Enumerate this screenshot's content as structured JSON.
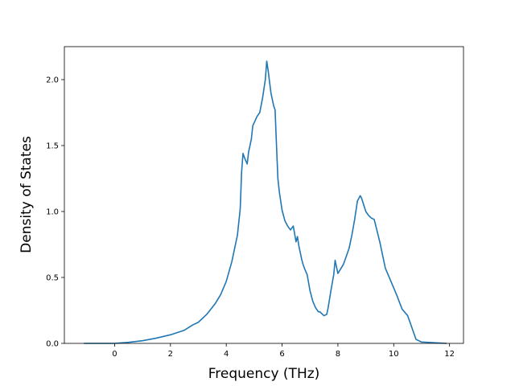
{
  "chart_data": {
    "type": "line",
    "title": "",
    "xlabel": "Frequency (THz)",
    "ylabel": "Density of States",
    "xlim": [
      -1.8,
      12.5
    ],
    "ylim": [
      0.0,
      2.25
    ],
    "xticks": [
      0,
      2,
      4,
      6,
      8,
      10,
      12
    ],
    "yticks": [
      0.0,
      0.5,
      1.0,
      1.5,
      2.0
    ],
    "xtick_labels": [
      "0",
      "2",
      "4",
      "6",
      "8",
      "10",
      "12"
    ],
    "ytick_labels": [
      "0.0",
      "0.5",
      "1.0",
      "1.5",
      "2.0"
    ],
    "grid": false,
    "line_color": "#1f77b4",
    "series": [
      {
        "x": [
          -1.1,
          0.0,
          0.5,
          1.0,
          1.5,
          2.0,
          2.5,
          2.8,
          3.0,
          3.3,
          3.6,
          3.8,
          4.0,
          4.2,
          4.4,
          4.5,
          4.55,
          4.6,
          4.65,
          4.75,
          4.8,
          4.9,
          4.95,
          5.1,
          5.2,
          5.3,
          5.4,
          5.45,
          5.5,
          5.6,
          5.7,
          5.75,
          5.8,
          5.85,
          5.9,
          6.0,
          6.1,
          6.2,
          6.3,
          6.4,
          6.5,
          6.55,
          6.6,
          6.65,
          6.7,
          6.75,
          6.8,
          6.9,
          7.0,
          7.1,
          7.2,
          7.3,
          7.35,
          7.5,
          7.6,
          7.65,
          7.75,
          7.85,
          7.9,
          8.0,
          8.2,
          8.4,
          8.5,
          8.6,
          8.7,
          8.8,
          8.85,
          9.0,
          9.1,
          9.2,
          9.3,
          9.5,
          9.7,
          9.8,
          10.0,
          10.1,
          10.3,
          10.5,
          10.8,
          11.0,
          11.9
        ],
        "values": [
          0.0,
          0.0,
          0.008,
          0.02,
          0.04,
          0.065,
          0.1,
          0.14,
          0.16,
          0.22,
          0.3,
          0.37,
          0.47,
          0.62,
          0.82,
          1.02,
          1.3,
          1.44,
          1.41,
          1.36,
          1.45,
          1.55,
          1.65,
          1.72,
          1.75,
          1.86,
          2.0,
          2.14,
          2.07,
          1.9,
          1.8,
          1.77,
          1.5,
          1.25,
          1.15,
          1.01,
          0.93,
          0.89,
          0.86,
          0.89,
          0.77,
          0.81,
          0.74,
          0.69,
          0.64,
          0.6,
          0.57,
          0.52,
          0.4,
          0.32,
          0.27,
          0.24,
          0.24,
          0.21,
          0.22,
          0.27,
          0.4,
          0.52,
          0.63,
          0.53,
          0.6,
          0.72,
          0.82,
          0.94,
          1.08,
          1.12,
          1.1,
          1.0,
          0.97,
          0.95,
          0.94,
          0.77,
          0.57,
          0.52,
          0.42,
          0.37,
          0.26,
          0.21,
          0.03,
          0.01,
          0.0
        ]
      }
    ]
  }
}
